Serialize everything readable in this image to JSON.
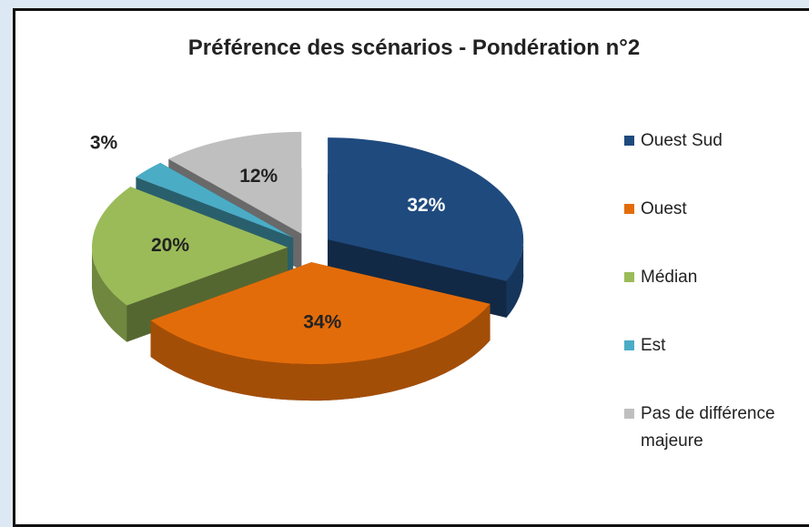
{
  "chart_data": {
    "type": "pie",
    "title": "Préférence des scénarios - Pondération n°2",
    "categories": [
      "Ouest Sud",
      "Ouest",
      "Médian",
      "Est",
      "Pas de différence majeure"
    ],
    "values": [
      32,
      34,
      20,
      3,
      12
    ],
    "value_labels": [
      "32%",
      "34%",
      "20%",
      "3%",
      "12%"
    ],
    "colors": [
      "#1f4a7e",
      "#e36c0a",
      "#9bbb59",
      "#4bacc6",
      "#bfbfbf"
    ],
    "legend": "right"
  }
}
